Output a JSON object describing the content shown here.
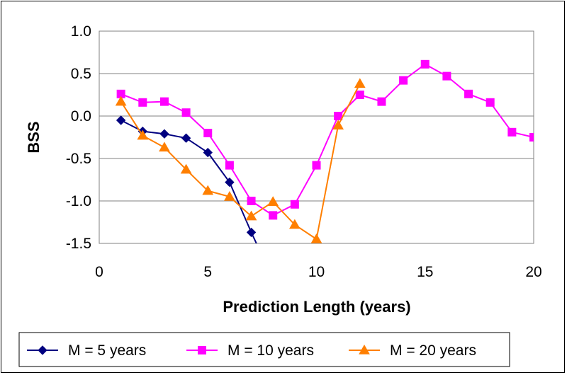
{
  "chart_data": {
    "type": "line",
    "title": "",
    "xlabel": "Prediction Length (years)",
    "ylabel": "BSS",
    "xlim": [
      0,
      20
    ],
    "ylim": [
      -1.5,
      1.0
    ],
    "x_ticks": [
      0,
      5,
      10,
      15,
      20
    ],
    "x_tick_labels": [
      "0",
      "5",
      "10",
      "15",
      "20"
    ],
    "y_ticks": [
      1.0,
      0.5,
      0.0,
      -0.5,
      -1.0,
      -1.5
    ],
    "y_tick_labels": [
      "1.0",
      "0.5",
      "0.0",
      "-0.5",
      "-1.0",
      "-1.5"
    ],
    "grid": "horizontal",
    "legend_position": "bottom",
    "series": [
      {
        "name": "M = 5 years",
        "color": "#000080",
        "marker": "diamond",
        "x": [
          1,
          2,
          3,
          4,
          5,
          6,
          7
        ],
        "values": [
          -0.05,
          -0.18,
          -0.21,
          -0.26,
          -0.43,
          -0.78,
          -1.37
        ],
        "trailing_line_to": {
          "x": 7.6,
          "y": -1.7
        }
      },
      {
        "name": "M = 10 years",
        "color": "#FF00FF",
        "marker": "square",
        "x": [
          1,
          2,
          3,
          4,
          5,
          6,
          7,
          8,
          9,
          10,
          11,
          12,
          13,
          14,
          15,
          16,
          17,
          18,
          19,
          20
        ],
        "values": [
          0.26,
          0.16,
          0.17,
          0.04,
          -0.2,
          -0.58,
          -1.0,
          -1.17,
          -1.04,
          -0.58,
          0.0,
          0.25,
          0.17,
          0.42,
          0.61,
          0.47,
          0.26,
          0.16,
          -0.19,
          -0.25
        ]
      },
      {
        "name": "M = 20 years",
        "color": "#FF7F00",
        "marker": "triangle",
        "x": [
          1,
          2,
          3,
          4,
          5,
          6,
          7,
          8,
          9,
          10,
          11,
          12
        ],
        "values": [
          0.17,
          -0.23,
          -0.37,
          -0.63,
          -0.88,
          -0.95,
          -1.18,
          -1.01,
          -1.28,
          -1.45,
          -0.11,
          0.38
        ]
      }
    ]
  }
}
